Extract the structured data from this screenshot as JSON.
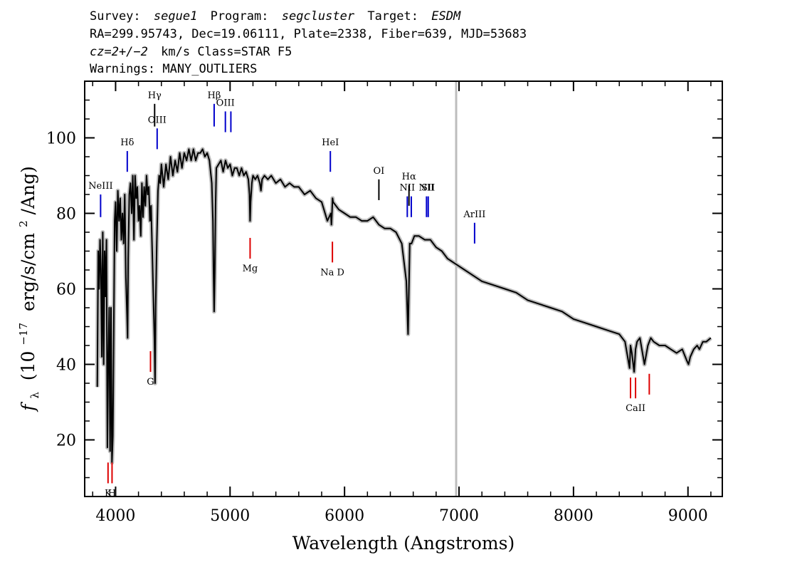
{
  "header": {
    "line1_prefix": "Survey:",
    "survey": "segue1",
    "program_prefix": "Program:",
    "program": "segcluster",
    "target_prefix": "Target:",
    "target": "ESDM",
    "line2": "RA=299.95743, Dec=19.06111, Plate=2338, Fiber=639, MJD=53683",
    "line3_cz": "cz=2+/−2",
    "line3_rest": "km/s Class=STAR F5",
    "line4": "Warnings: MANY_OUTLIERS"
  },
  "chart_data": {
    "type": "line",
    "xlabel": "Wavelength (Angstroms)",
    "ylabel_prefix": "f",
    "ylabel_sub": "λ",
    "ylabel_main": "(10",
    "ylabel_exp": "−17",
    "ylabel_units": "erg/s/cm",
    "ylabel_units_exp": "2",
    "ylabel_tail": "/Ang)",
    "xlim": [
      3730,
      9300
    ],
    "ylim": [
      5,
      115
    ],
    "xticks": [
      4000,
      5000,
      6000,
      7000,
      8000,
      9000
    ],
    "yticks": [
      20,
      40,
      60,
      80,
      100
    ],
    "vertical_marker_x": 6975,
    "series": [
      {
        "color": "#000000",
        "error_color": "#bdbdbd",
        "x": [
          3840,
          3848,
          3856,
          3864,
          3872,
          3880,
          3888,
          3896,
          3904,
          3912,
          3920,
          3928,
          3936,
          3944,
          3952,
          3960,
          3968,
          3976,
          3984,
          3992,
          4000,
          4010,
          4020,
          4030,
          4040,
          4050,
          4060,
          4070,
          4080,
          4090,
          4100,
          4105,
          4110,
          4120,
          4130,
          4140,
          4150,
          4160,
          4170,
          4180,
          4190,
          4200,
          4210,
          4220,
          4230,
          4240,
          4250,
          4260,
          4270,
          4280,
          4290,
          4300,
          4310,
          4320,
          4330,
          4340,
          4345,
          4350,
          4360,
          4370,
          4380,
          4390,
          4400,
          4420,
          4440,
          4460,
          4480,
          4500,
          4520,
          4540,
          4560,
          4580,
          4600,
          4620,
          4640,
          4660,
          4680,
          4700,
          4720,
          4740,
          4760,
          4780,
          4800,
          4820,
          4840,
          4850,
          4855,
          4861,
          4867,
          4873,
          4880,
          4900,
          4920,
          4940,
          4960,
          4980,
          5000,
          5020,
          5040,
          5060,
          5080,
          5100,
          5120,
          5140,
          5160,
          5170,
          5175,
          5180,
          5190,
          5200,
          5220,
          5240,
          5260,
          5270,
          5280,
          5300,
          5330,
          5360,
          5400,
          5440,
          5480,
          5520,
          5560,
          5600,
          5650,
          5700,
          5750,
          5800,
          5850,
          5880,
          5885,
          5890,
          5895,
          5900,
          5950,
          6000,
          6050,
          6100,
          6150,
          6200,
          6250,
          6300,
          6350,
          6400,
          6450,
          6500,
          6540,
          6555,
          6562,
          6570,
          6585,
          6610,
          6650,
          6700,
          6750,
          6800,
          6850,
          6900,
          6950,
          7000,
          7100,
          7200,
          7300,
          7400,
          7500,
          7600,
          7700,
          7800,
          7900,
          8000,
          8100,
          8200,
          8300,
          8400,
          8450,
          8490,
          8498,
          8510,
          8530,
          8542,
          8555,
          8580,
          8620,
          8650,
          8662,
          8675,
          8700,
          8750,
          8800,
          8850,
          8900,
          8950,
          8990,
          9005,
          9020,
          9050,
          9080,
          9100,
          9130,
          9160,
          9200
        ],
        "y": [
          34,
          70,
          60,
          73,
          65,
          42,
          75,
          40,
          70,
          58,
          73,
          18,
          40,
          55,
          17,
          55,
          14,
          21,
          50,
          78,
          83,
          70,
          86,
          78,
          84,
          73,
          80,
          72,
          85,
          63,
          53,
          47,
          68,
          85,
          88,
          80,
          90,
          73,
          90,
          84,
          87,
          78,
          82,
          74,
          88,
          79,
          87,
          82,
          90,
          85,
          87,
          78,
          82,
          70,
          58,
          46,
          35,
          55,
          72,
          86,
          90,
          88,
          93,
          87,
          93,
          89,
          95,
          90,
          94,
          91,
          96,
          92,
          96,
          94,
          97,
          94,
          97,
          94,
          96,
          96,
          97,
          95,
          96,
          94,
          88,
          78,
          65,
          54,
          65,
          82,
          92,
          93,
          94,
          91,
          94,
          92,
          93,
          90,
          92,
          92,
          90,
          92,
          90,
          91,
          89,
          85,
          78,
          83,
          88,
          90,
          89,
          90,
          88,
          86,
          89,
          90,
          89,
          90,
          88,
          89,
          87,
          88,
          87,
          87,
          85,
          86,
          84,
          83,
          78,
          80,
          77,
          80,
          84,
          83,
          81,
          80,
          79,
          79,
          78,
          78,
          79,
          77,
          76,
          76,
          75,
          72,
          62,
          48,
          60,
          72,
          72,
          74,
          74,
          73,
          73,
          71,
          70,
          68,
          67,
          66,
          64,
          62,
          61,
          60,
          59,
          57,
          56,
          55,
          54,
          52,
          51,
          50,
          49,
          48,
          46,
          39,
          45,
          43,
          38,
          44,
          46,
          47,
          40,
          45,
          46,
          47,
          46,
          45,
          45,
          44,
          43,
          44,
          41,
          40,
          42,
          44,
          45,
          44,
          46,
          46,
          47
        ]
      }
    ],
    "emission_lines": [
      {
        "label": "NeIII",
        "x": 3869,
        "y0": 79,
        "y1": 85,
        "label_y": 86.5
      },
      {
        "label": "Hδ",
        "x": 4102,
        "y0": 91,
        "y1": 96.5,
        "label_y": 98
      },
      {
        "label": "Hγ",
        "x": 4341,
        "y0": 103,
        "y1": 109,
        "label_y": 110.5,
        "color": "#000000"
      },
      {
        "label": "OIII",
        "x": 4363,
        "y0": 97,
        "y1": 102.5,
        "label_y": 104
      },
      {
        "label": "Hβ",
        "x": 4861,
        "y0": 103,
        "y1": 109,
        "label_y": 110.5
      },
      {
        "label": "OIII",
        "x": 4959,
        "y0": 101.5,
        "y1": 107,
        "label_y": 108.5
      },
      {
        "label": "",
        "x": 5007,
        "y0": 101.5,
        "y1": 107,
        "label_y": 0
      },
      {
        "label": "HeI",
        "x": 5876,
        "y0": 91,
        "y1": 96.5,
        "label_y": 98
      },
      {
        "label": "OI",
        "x": 6300,
        "y0": 83.5,
        "y1": 89,
        "label_y": 90.5,
        "color": "#000000"
      },
      {
        "label": "NII",
        "x": 6548,
        "y0": 79,
        "y1": 84.5,
        "label_y": 86
      },
      {
        "label": "Hα",
        "x": 6563,
        "y0": 82,
        "y1": 87.5,
        "label_y": 89,
        "color": "#000000"
      },
      {
        "label": "",
        "x": 6583,
        "y0": 79,
        "y1": 84.5,
        "label_y": 0
      },
      {
        "label": "NII",
        "x": 6716,
        "y0": 79,
        "y1": 84.5,
        "label_y": 86
      },
      {
        "label": "SII",
        "x": 6731,
        "y0": 79,
        "y1": 84.5,
        "label_y": 86
      },
      {
        "label": "ArIII",
        "x": 7136,
        "y0": 72,
        "y1": 77.5,
        "label_y": 79
      }
    ],
    "absorption_lines": [
      {
        "label": "K",
        "x": 3934,
        "y0": 8.5,
        "y1": 14
      },
      {
        "label": "H",
        "x": 3969,
        "y0": 8.5,
        "y1": 14
      },
      {
        "label": "G",
        "x": 4305,
        "y0": 38,
        "y1": 43.5
      },
      {
        "label": "Mg",
        "x": 5175,
        "y0": 68,
        "y1": 73.5
      },
      {
        "label": "Na D",
        "x": 5894,
        "y0": 67,
        "y1": 72.5
      },
      {
        "label": "",
        "x": 8498,
        "y0": 31,
        "y1": 36.5
      },
      {
        "label": "CaII",
        "x": 8542,
        "y0": 31,
        "y1": 36.5
      },
      {
        "label": "",
        "x": 8662,
        "y0": 32,
        "y1": 37.5
      }
    ],
    "colors": {
      "emission": "#0000cc",
      "absorption": "#dd0000",
      "marker": "#bdbdbd"
    }
  }
}
